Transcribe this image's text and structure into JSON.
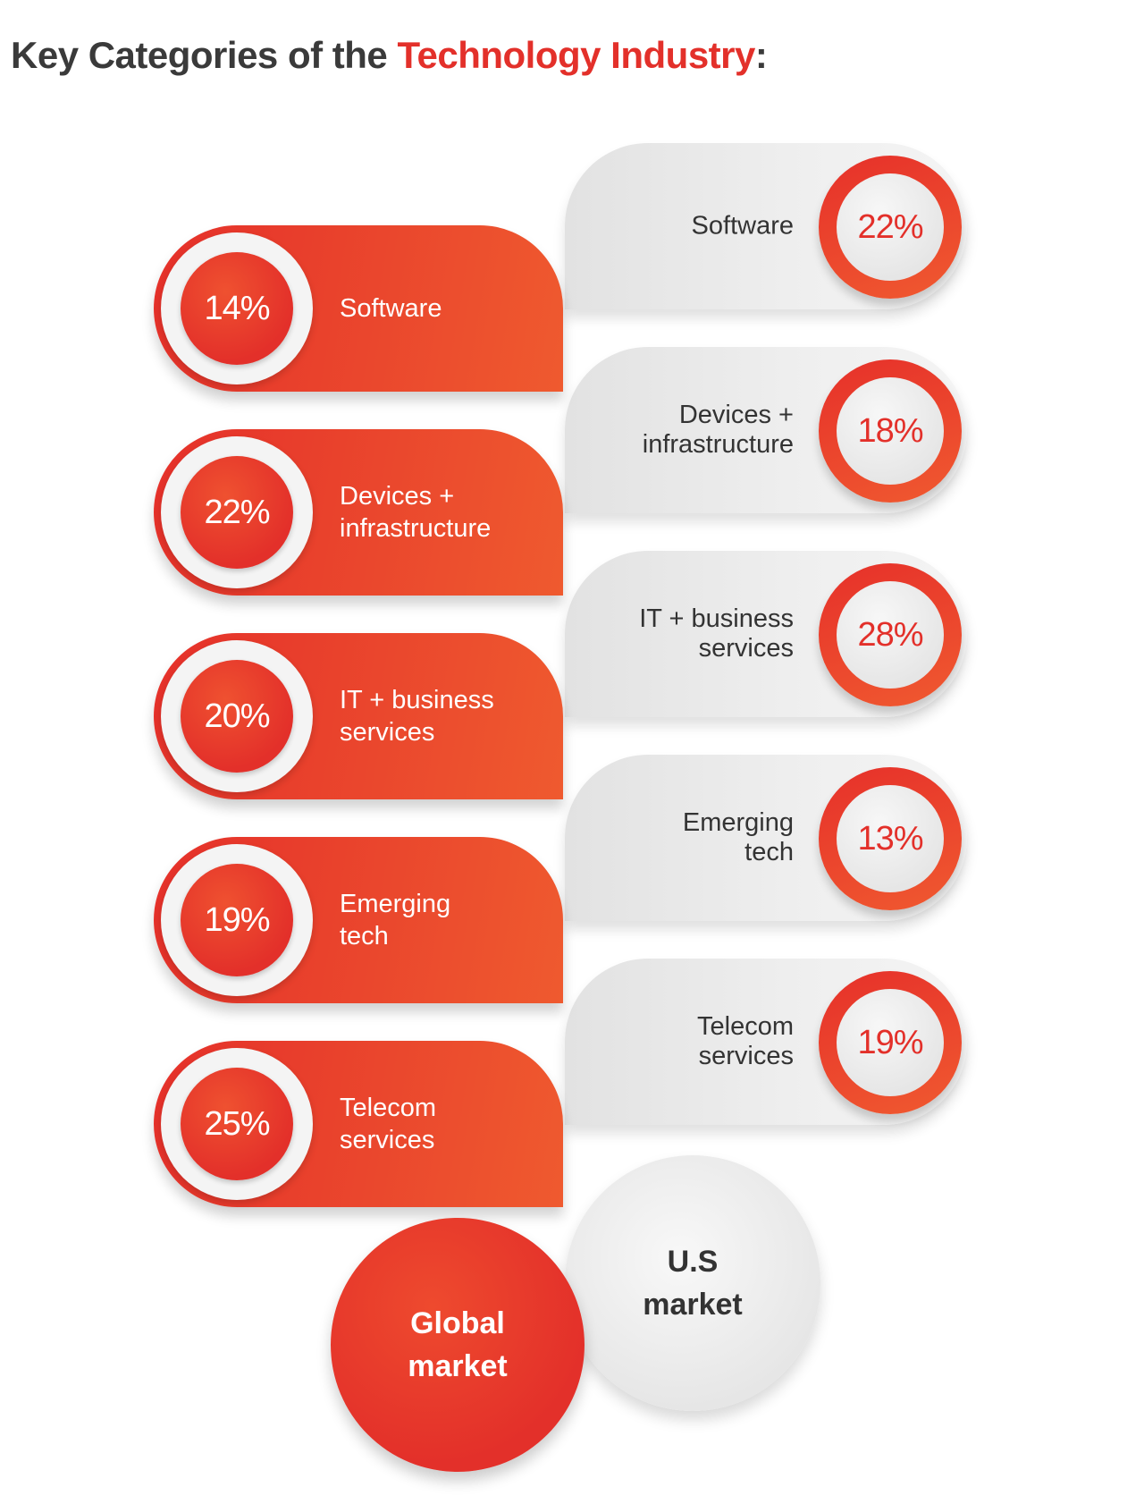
{
  "title": {
    "prefix": "Key Categories of the ",
    "highlight": "Technology Industry",
    "suffix": ":"
  },
  "colors": {
    "accent": "#e3302a",
    "dark_text": "#3a3a3a",
    "light_grey": "#efefef"
  },
  "global_market": {
    "label_line1": "Global",
    "label_line2": "market",
    "items": [
      {
        "percent": "14%",
        "line1": "Software",
        "line2": ""
      },
      {
        "percent": "22%",
        "line1": "Devices +",
        "line2": "infrastructure"
      },
      {
        "percent": "20%",
        "line1": "IT + business",
        "line2": "services"
      },
      {
        "percent": "19%",
        "line1": "Emerging",
        "line2": "tech"
      },
      {
        "percent": "25%",
        "line1": "Telecom",
        "line2": "services"
      }
    ]
  },
  "us_market": {
    "label_line1": "U.S",
    "label_line2": "market",
    "items": [
      {
        "percent": "22%",
        "line1": "Software",
        "line2": ""
      },
      {
        "percent": "18%",
        "line1": "Devices +",
        "line2": "infrastructure"
      },
      {
        "percent": "28%",
        "line1": "IT + business",
        "line2": "services"
      },
      {
        "percent": "13%",
        "line1": "Emerging",
        "line2": "tech"
      },
      {
        "percent": "19%",
        "line1": "Telecom",
        "line2": "services"
      }
    ]
  }
}
